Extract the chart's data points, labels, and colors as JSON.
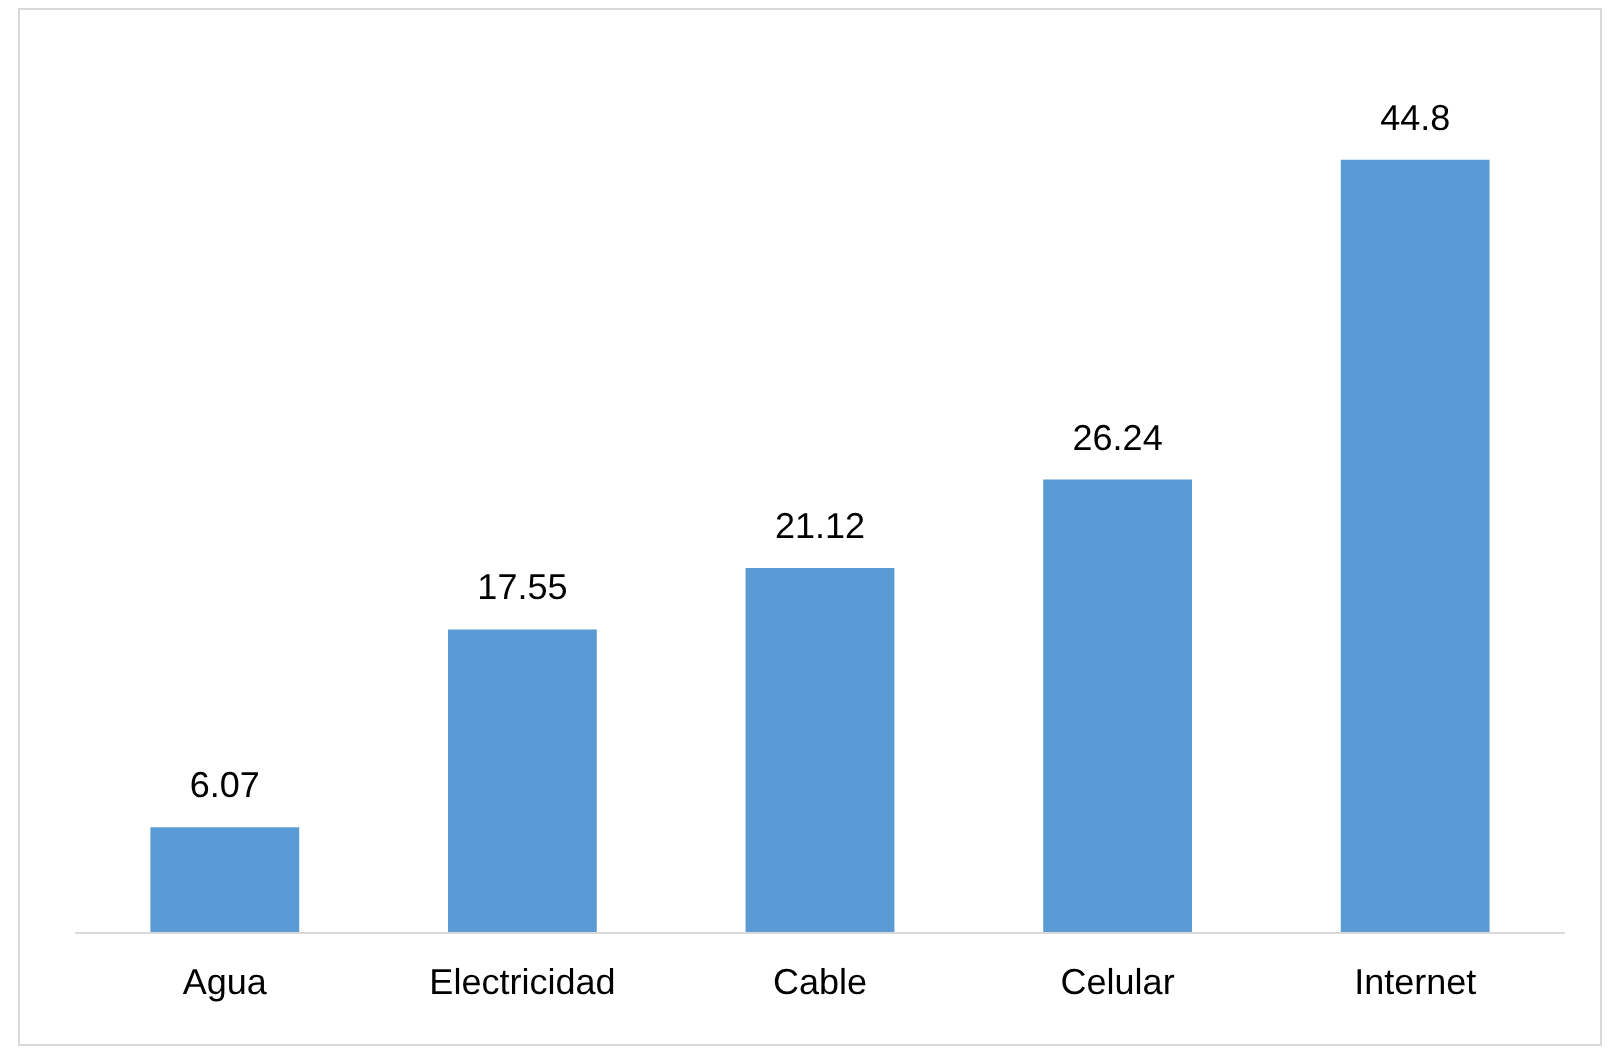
{
  "chart_data": {
    "type": "bar",
    "categories": [
      "Agua",
      "Electricidad",
      "Cable",
      "Celular",
      "Internet"
    ],
    "values": [
      6.07,
      17.55,
      21.12,
      26.24,
      44.8
    ],
    "color": "#5b9bd5",
    "data_labels": true
  }
}
